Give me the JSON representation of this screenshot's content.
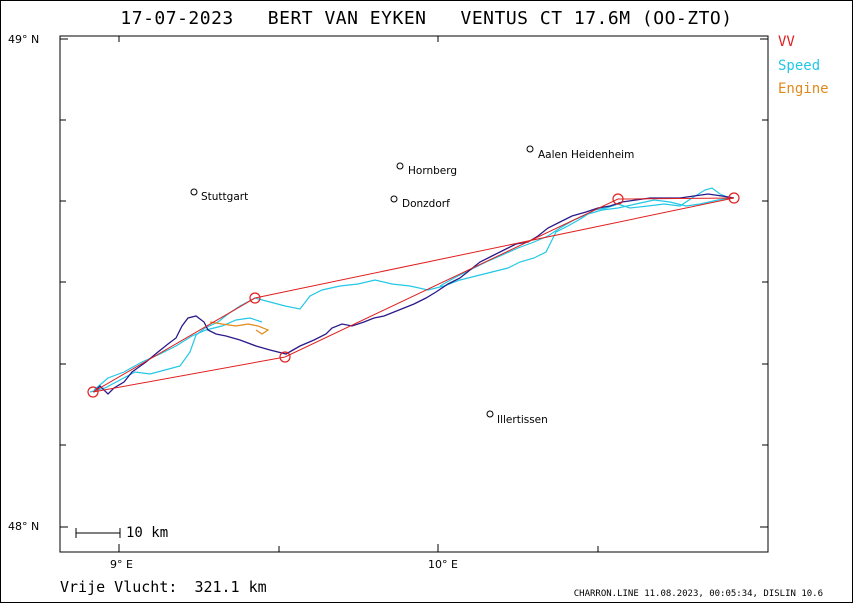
{
  "title": "17-07-2023   BERT VAN EYKEN   VENTUS CT 17.6M (OO-ZTO)",
  "legend": [
    {
      "label": "VV",
      "color": "#e02020"
    },
    {
      "label": "Speed",
      "color": "#22c8e6"
    },
    {
      "label": "Engine",
      "color": "#e08a1a"
    }
  ],
  "axes": {
    "y_ticks": [
      {
        "label": "49° N",
        "lat": 49.0
      },
      {
        "label": "48° N",
        "lat": 48.0
      }
    ],
    "x_ticks": [
      {
        "label": "9° E",
        "lon": 9.0
      },
      {
        "label": "10° E",
        "lon": 10.0
      }
    ]
  },
  "scale_bar": {
    "label": "10 km"
  },
  "towns": [
    {
      "name": "Stuttgart",
      "lat": 48.68,
      "lon": 9.23
    },
    {
      "name": "Hornberg",
      "lat": 48.73,
      "lon": 9.86
    },
    {
      "name": "Donzdorf",
      "lat": 48.66,
      "lon": 9.84
    },
    {
      "name": "Aalen Heidenheim",
      "lat": 48.77,
      "lon": 10.27
    },
    {
      "name": "Illertissen",
      "lat": 48.23,
      "lon": 10.12
    }
  ],
  "turnpoints": [
    {
      "lat": 48.275,
      "lon": 8.92
    },
    {
      "lat": 48.46,
      "lon": 9.42
    },
    {
      "lat": 48.35,
      "lon": 9.51
    },
    {
      "lat": 48.65,
      "lon": 10.54
    },
    {
      "lat": 48.655,
      "lon": 10.89
    }
  ],
  "footer": {
    "distance_label": "Vrije Vlucht:",
    "distance_value": "321.1 km",
    "credit": "CHARRON.LINE 11.08.2023, 00:05:34, DISLIN 10.6"
  }
}
